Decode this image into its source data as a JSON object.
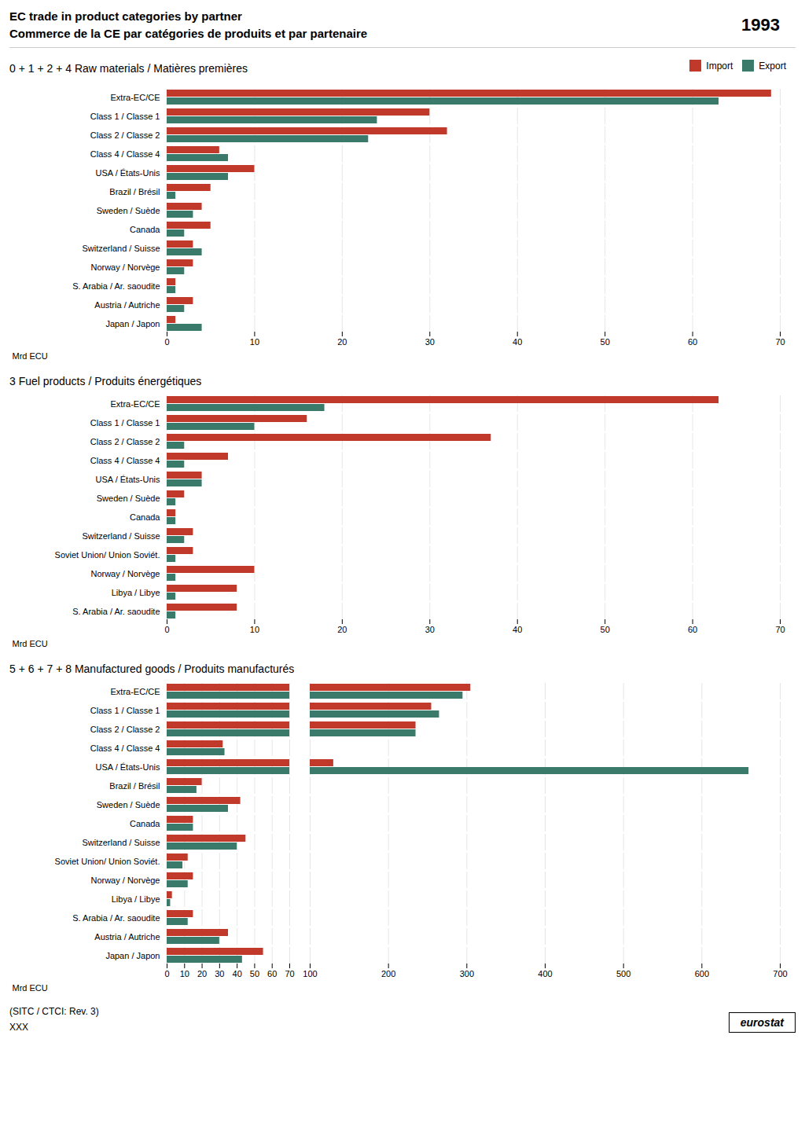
{
  "title": "EC trade in product categories by partner",
  "subtitle": "Commerce de la CE par catégories de produits et par partenaire",
  "annotations": [
    "1993",
    "(SITC / CTCI: Rev. 3)",
    "XXX",
    "eurostat"
  ],
  "chart_data": [
    {
      "type": "bar",
      "orientation": "horizontal",
      "title": "0 + 1 + 2 + 4 Raw materials / Matières premières",
      "categories": [
        "Extra-EC/CE",
        "Class 1 / Classe 1",
        "Class 2 / Classe 2",
        "Class 4 / Classe 4",
        "USA / États-Unis",
        "Brazil / Brésil",
        "Sweden / Suède",
        "Canada",
        "Switzerland / Suisse",
        "Norway / Norvège",
        "S. Arabia / Ar. saoudite",
        "Austria / Autriche",
        "Japan / Japon"
      ],
      "series": [
        {
          "name": "Import",
          "color": "#c0392b",
          "values": [
            69,
            30,
            32,
            6,
            10,
            5,
            4,
            5,
            3,
            3,
            1,
            3,
            1
          ]
        },
        {
          "name": "Export",
          "color": "#3a7a6a",
          "values": [
            63,
            24,
            23,
            7,
            7,
            1,
            3,
            2,
            4,
            2,
            1,
            2,
            4
          ]
        }
      ],
      "xlabel": "Mrd ECU",
      "xlim": [
        0,
        70
      ],
      "xticks": [
        0,
        10,
        20,
        30,
        40,
        50,
        60,
        70
      ],
      "grid": true,
      "legend": "upper right"
    },
    {
      "type": "bar",
      "orientation": "horizontal",
      "title": "3 Fuel products / Produits énergétiques",
      "categories": [
        "Extra-EC/CE",
        "Class 1 / Classe 1",
        "Class 2 / Classe 2",
        "Class 4 / Classe 4",
        "USA / États-Unis",
        "Sweden / Suède",
        "Canada",
        "Switzerland / Suisse",
        "Soviet Union/ Union Soviét.",
        "Norway / Norvège",
        "Libya / Libye",
        "S. Arabia / Ar. saoudite"
      ],
      "series": [
        {
          "name": "Import",
          "color": "#c0392b",
          "values": [
            63,
            16,
            37,
            7,
            4,
            2,
            1,
            3,
            3,
            10,
            8,
            8
          ]
        },
        {
          "name": "Export",
          "color": "#3a7a6a",
          "values": [
            18,
            10,
            2,
            2,
            4,
            1,
            1,
            2,
            1,
            1,
            1,
            1
          ]
        }
      ],
      "xlabel": "Mrd ECU",
      "xlim": [
        0,
        70
      ],
      "xticks": [
        0,
        10,
        20,
        30,
        40,
        50,
        60,
        70
      ],
      "grid": true,
      "legend": false
    },
    {
      "type": "bar",
      "orientation": "horizontal",
      "title": "5 + 6 + 7 + 8 Manufactured goods / Produits manufacturés",
      "categories": [
        "Extra-EC/CE",
        "Class 1 / Classe 1",
        "Class 2 / Classe 2",
        "Class 4 / Classe 4",
        "USA / États-Unis",
        "Brazil / Brésil",
        "Sweden / Suède",
        "Canada",
        "Switzerland / Suisse",
        "Soviet Union/ Union Soviét.",
        "Norway / Norvège",
        "Libya / Libye",
        "S. Arabia / Ar. saoudite",
        "Austria / Autriche",
        "Japan / Japon"
      ],
      "series": [
        {
          "name": "Import",
          "color": "#c0392b",
          "values": [
            305,
            255,
            235,
            32,
            130,
            20,
            42,
            15,
            45,
            12,
            15,
            3,
            15,
            35,
            55
          ]
        },
        {
          "name": "Export",
          "color": "#3a7a6a",
          "values": [
            295,
            265,
            235,
            33,
            660,
            17,
            35,
            15,
            40,
            9,
            12,
            2,
            12,
            30,
            43
          ]
        }
      ],
      "xlabel": "Mrd ECU",
      "xlim": [
        [
          0,
          70
        ],
        [
          100,
          700
        ]
      ],
      "xticks": [
        [
          0,
          10,
          20,
          30,
          40,
          50,
          60,
          70
        ],
        [
          100,
          200,
          300,
          400,
          500,
          600,
          700
        ]
      ],
      "grid": true,
      "legend": false
    }
  ]
}
